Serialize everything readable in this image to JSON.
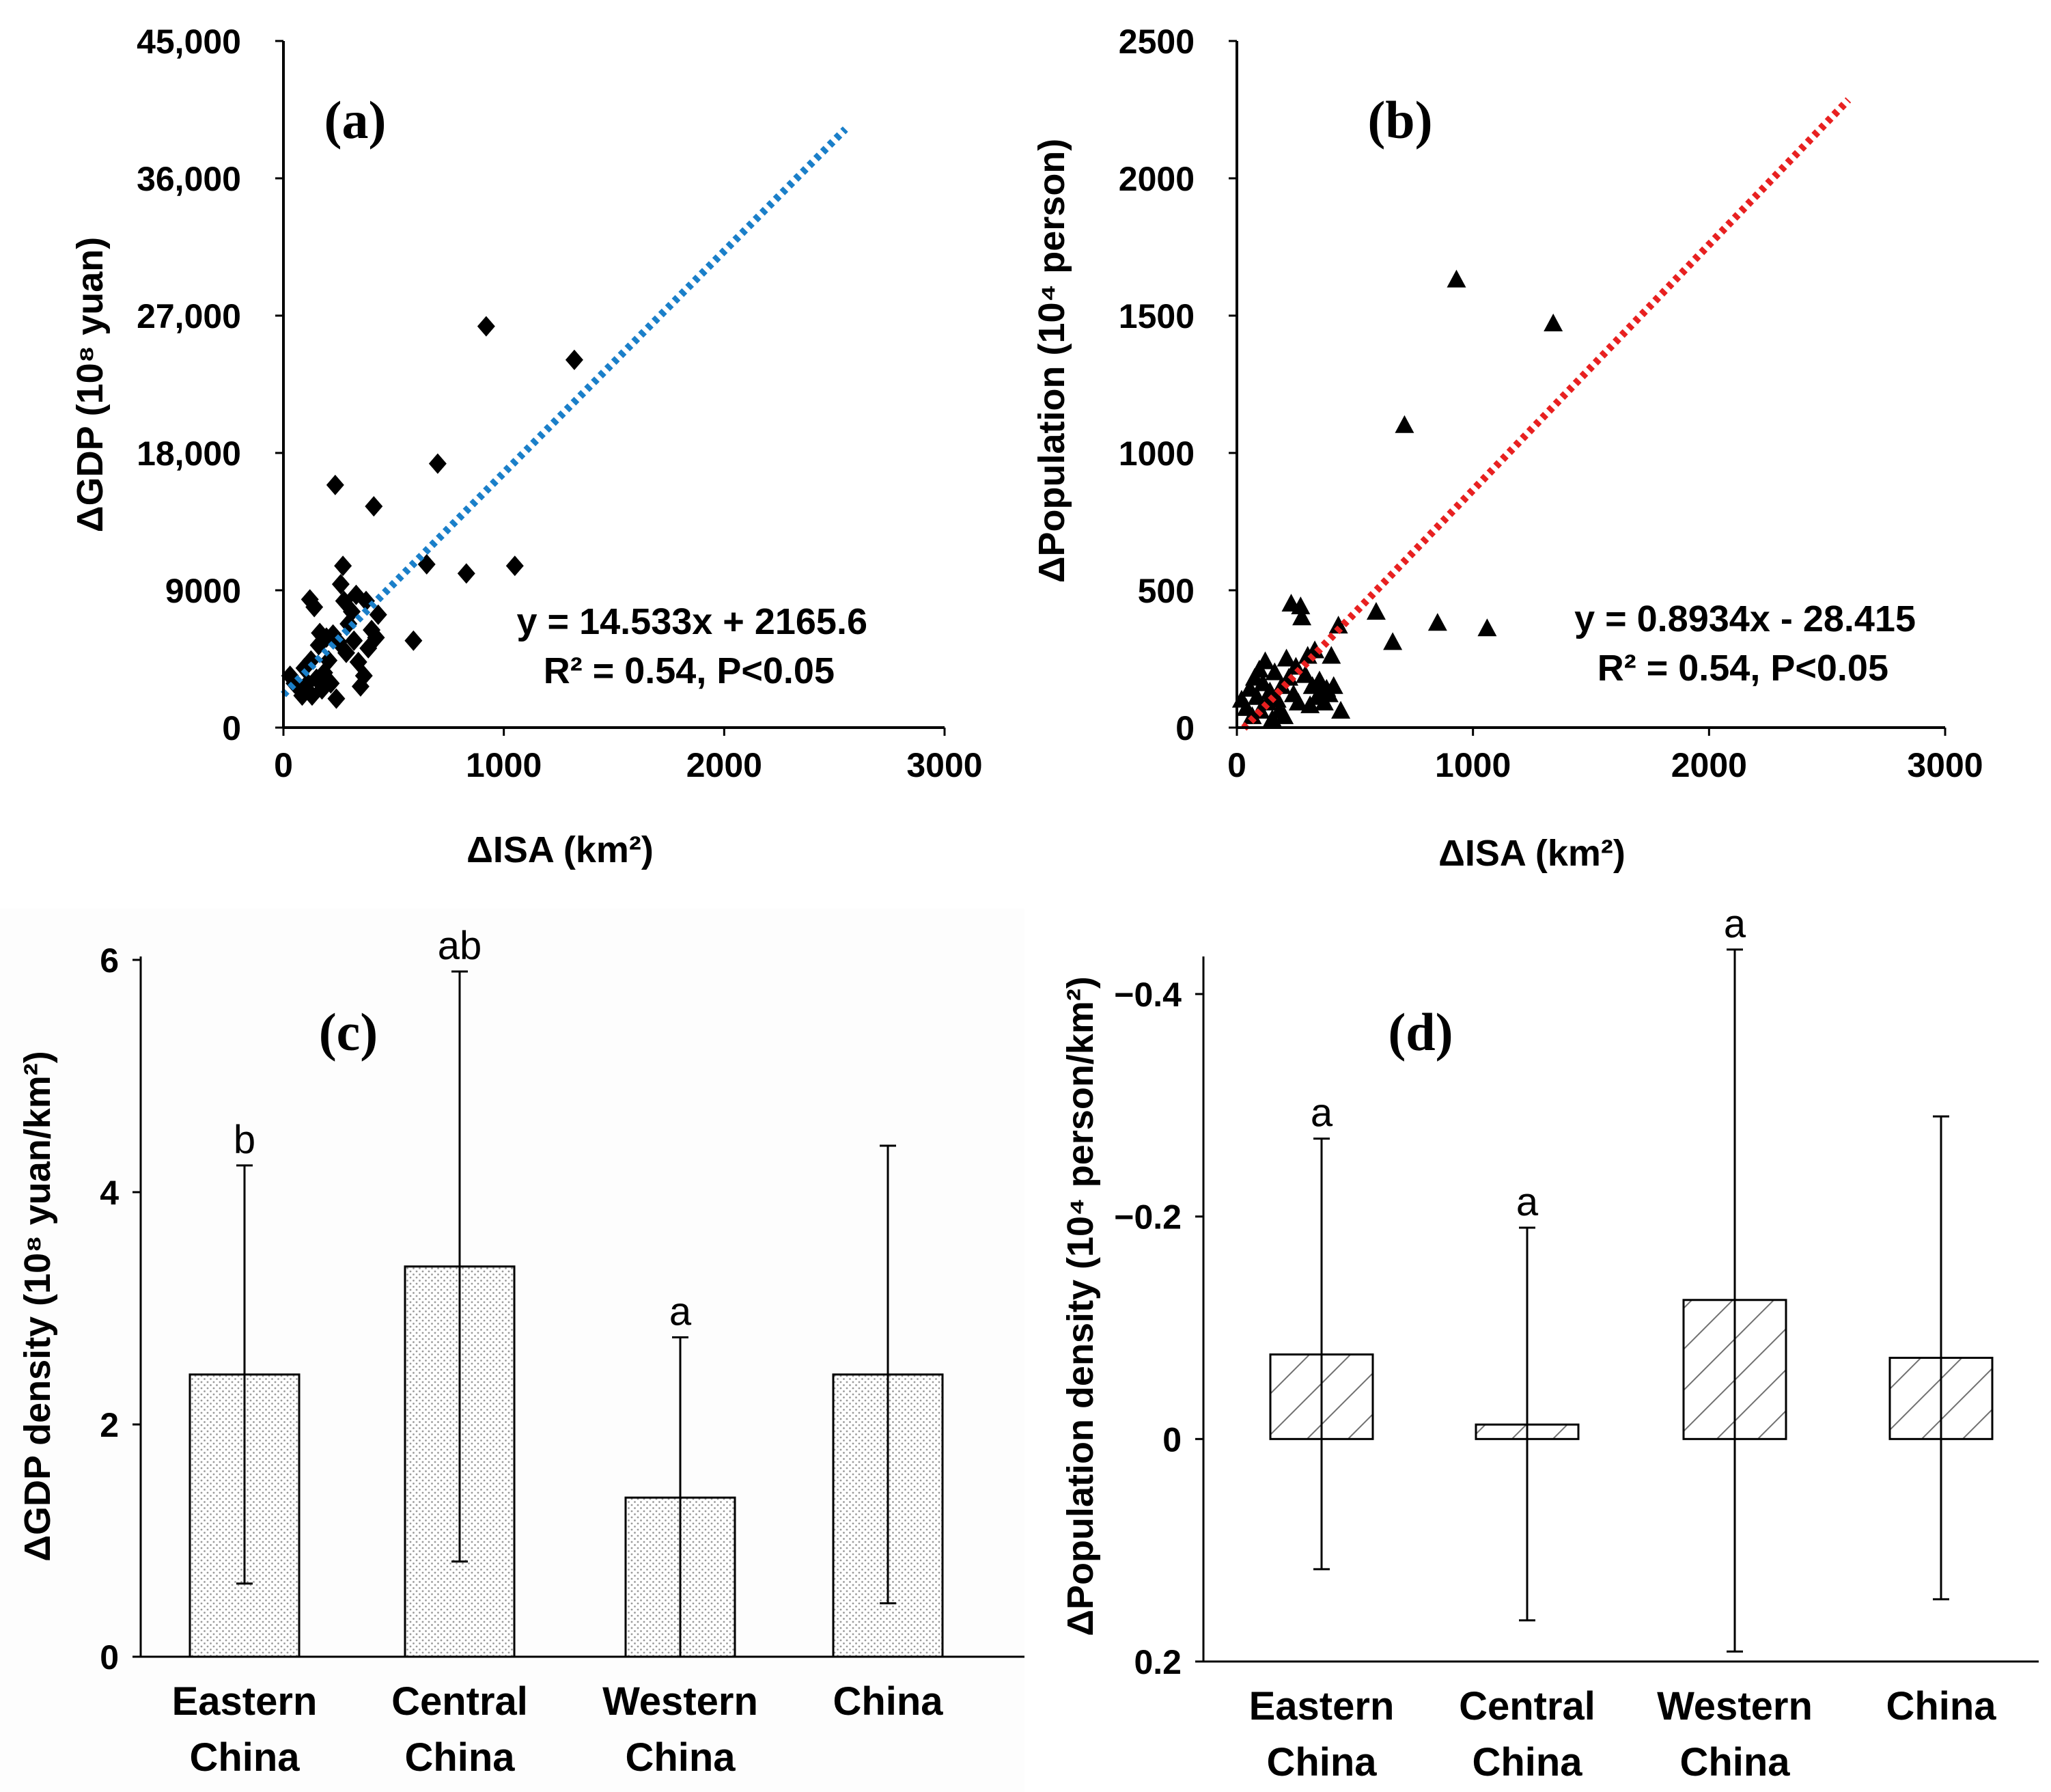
{
  "chart_data": [
    {
      "type": "scatter",
      "panel_label": "(a)",
      "xlabel": "ΔISA (km²)",
      "ylabel": "ΔGDP  (10⁸ yuan)",
      "xlim": [
        0,
        3000
      ],
      "ylim": [
        0,
        45000
      ],
      "xticks": [
        "0",
        "1000",
        "2000",
        "3000"
      ],
      "yticks": [
        "0",
        "9000",
        "18,000",
        "27,000",
        "36,000",
        "45,000"
      ],
      "marker": "diamond",
      "points": [
        {
          "x": 30,
          "y": 3400
        },
        {
          "x": 50,
          "y": 2900
        },
        {
          "x": 70,
          "y": 2600
        },
        {
          "x": 85,
          "y": 2100
        },
        {
          "x": 95,
          "y": 3900
        },
        {
          "x": 110,
          "y": 2900
        },
        {
          "x": 120,
          "y": 8400
        },
        {
          "x": 125,
          "y": 4400
        },
        {
          "x": 130,
          "y": 2100
        },
        {
          "x": 140,
          "y": 7900
        },
        {
          "x": 150,
          "y": 3200
        },
        {
          "x": 160,
          "y": 5400
        },
        {
          "x": 165,
          "y": 6200
        },
        {
          "x": 175,
          "y": 2500
        },
        {
          "x": 185,
          "y": 3600
        },
        {
          "x": 195,
          "y": 5900
        },
        {
          "x": 205,
          "y": 4400
        },
        {
          "x": 215,
          "y": 2900
        },
        {
          "x": 225,
          "y": 6100
        },
        {
          "x": 235,
          "y": 15900
        },
        {
          "x": 240,
          "y": 1900
        },
        {
          "x": 250,
          "y": 5600
        },
        {
          "x": 260,
          "y": 9400
        },
        {
          "x": 270,
          "y": 10600
        },
        {
          "x": 275,
          "y": 8300
        },
        {
          "x": 285,
          "y": 4900
        },
        {
          "x": 295,
          "y": 6800
        },
        {
          "x": 310,
          "y": 7600
        },
        {
          "x": 320,
          "y": 5700
        },
        {
          "x": 330,
          "y": 8700
        },
        {
          "x": 340,
          "y": 4300
        },
        {
          "x": 350,
          "y": 2700
        },
        {
          "x": 365,
          "y": 3400
        },
        {
          "x": 375,
          "y": 8300
        },
        {
          "x": 385,
          "y": 5200
        },
        {
          "x": 400,
          "y": 6400
        },
        {
          "x": 410,
          "y": 14500
        },
        {
          "x": 420,
          "y": 5900
        },
        {
          "x": 430,
          "y": 7400
        },
        {
          "x": 590,
          "y": 5700
        },
        {
          "x": 650,
          "y": 10700
        },
        {
          "x": 700,
          "y": 17300
        },
        {
          "x": 830,
          "y": 10100
        },
        {
          "x": 920,
          "y": 26300
        },
        {
          "x": 1050,
          "y": 10600
        },
        {
          "x": 1320,
          "y": 24100
        }
      ],
      "trendline": {
        "slope": 14.533,
        "intercept": 2165.6,
        "x_range": [
          0,
          2550
        ],
        "color": "#1a7fc9"
      },
      "equation": "y = 14.533x + 2165.6",
      "stats": "R² = 0.54, P<0.05"
    },
    {
      "type": "scatter",
      "panel_label": "(b)",
      "xlabel": "ΔISA (km²)",
      "ylabel": "ΔPopulation  (10⁴ person)",
      "xlim": [
        0,
        3000
      ],
      "ylim": [
        0,
        2500
      ],
      "xticks": [
        "0",
        "1000",
        "2000",
        "3000"
      ],
      "yticks": [
        "0",
        "500",
        "1000",
        "1500",
        "2000",
        "2500"
      ],
      "marker": "triangle",
      "points": [
        {
          "x": 20,
          "y": 100
        },
        {
          "x": 40,
          "y": 70
        },
        {
          "x": 55,
          "y": 140
        },
        {
          "x": 65,
          "y": 40
        },
        {
          "x": 75,
          "y": 180
        },
        {
          "x": 85,
          "y": 110
        },
        {
          "x": 95,
          "y": 210
        },
        {
          "x": 100,
          "y": 60
        },
        {
          "x": 110,
          "y": 160
        },
        {
          "x": 120,
          "y": 240
        },
        {
          "x": 130,
          "y": 90
        },
        {
          "x": 140,
          "y": 130
        },
        {
          "x": 150,
          "y": 30
        },
        {
          "x": 160,
          "y": 200
        },
        {
          "x": 170,
          "y": 100
        },
        {
          "x": 180,
          "y": 60
        },
        {
          "x": 190,
          "y": 150
        },
        {
          "x": 200,
          "y": 40
        },
        {
          "x": 210,
          "y": 250
        },
        {
          "x": 220,
          "y": 180
        },
        {
          "x": 230,
          "y": 450
        },
        {
          "x": 240,
          "y": 120
        },
        {
          "x": 250,
          "y": 220
        },
        {
          "x": 260,
          "y": 90
        },
        {
          "x": 270,
          "y": 440
        },
        {
          "x": 275,
          "y": 400
        },
        {
          "x": 290,
          "y": 190
        },
        {
          "x": 300,
          "y": 260
        },
        {
          "x": 310,
          "y": 80
        },
        {
          "x": 320,
          "y": 150
        },
        {
          "x": 330,
          "y": 280
        },
        {
          "x": 340,
          "y": 110
        },
        {
          "x": 350,
          "y": 170
        },
        {
          "x": 360,
          "y": 130
        },
        {
          "x": 370,
          "y": 90
        },
        {
          "x": 380,
          "y": 140
        },
        {
          "x": 390,
          "y": 120
        },
        {
          "x": 400,
          "y": 260
        },
        {
          "x": 410,
          "y": 150
        },
        {
          "x": 430,
          "y": 370
        },
        {
          "x": 440,
          "y": 60
        },
        {
          "x": 590,
          "y": 420
        },
        {
          "x": 660,
          "y": 310
        },
        {
          "x": 710,
          "y": 1100
        },
        {
          "x": 850,
          "y": 380
        },
        {
          "x": 930,
          "y": 1630
        },
        {
          "x": 1060,
          "y": 360
        },
        {
          "x": 1340,
          "y": 1470
        }
      ],
      "trendline": {
        "slope": 0.8934,
        "intercept": -28.415,
        "x_range": [
          30,
          2590
        ],
        "color": "#e82020"
      },
      "equation": "y = 0.8934x  - 28.415",
      "stats": "R² = 0.54, P<0.05"
    },
    {
      "type": "bar",
      "panel_label": "(c)",
      "ylabel": "ΔGDP density (10⁸ yuan/km²)",
      "ylim": [
        0,
        6
      ],
      "yticks": [
        "0",
        "2",
        "4",
        "6"
      ],
      "categories": [
        [
          "Eastern",
          "China"
        ],
        [
          "Central",
          "China"
        ],
        [
          "Western",
          "China"
        ],
        [
          "China",
          ""
        ]
      ],
      "values": [
        2.43,
        3.36,
        1.37,
        2.43
      ],
      "error_low": [
        0.63,
        0.82,
        0.0,
        0.46
      ],
      "error_high": [
        4.23,
        5.9,
        2.75,
        4.4
      ],
      "significance": [
        "b",
        "ab",
        "a",
        ""
      ],
      "pattern": "dots"
    },
    {
      "type": "bar",
      "panel_label": "(d)",
      "ylabel": "ΔPopulation density (10⁴ person/km²)",
      "ylim": [
        0.2,
        -0.4
      ],
      "yticks": [
        "0.2",
        "0",
        "−0.2",
        "−0.4"
      ],
      "categories": [
        [
          "Eastern",
          "China"
        ],
        [
          "Central",
          "China"
        ],
        [
          "Western",
          "China"
        ],
        [
          "China",
          ""
        ]
      ],
      "values": [
        -0.076,
        -0.013,
        -0.125,
        -0.073
      ],
      "error_low": [
        -0.27,
        -0.19,
        -0.44,
        -0.29
      ],
      "error_high": [
        0.117,
        0.163,
        0.191,
        0.144
      ],
      "significance": [
        "a",
        "a",
        "a",
        ""
      ],
      "pattern": "hatch"
    }
  ]
}
